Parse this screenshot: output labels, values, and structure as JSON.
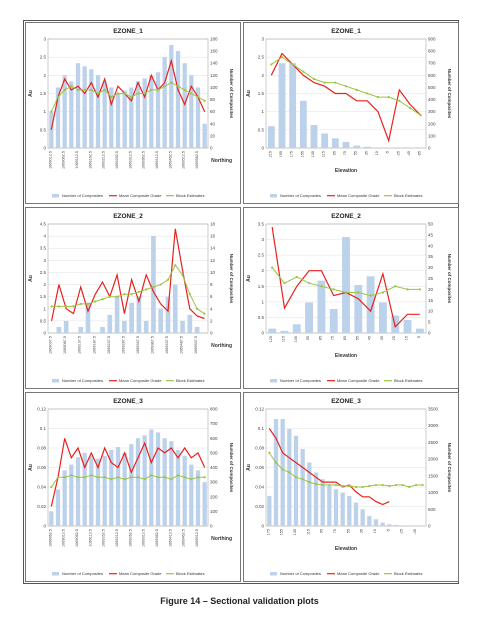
{
  "caption": "Figure 14 – Sectional validation plots",
  "colors": {
    "composites": "#bcd1ea",
    "mean_grade": "#e8211d",
    "block": "#9ac444"
  },
  "chart_data": [
    {
      "type": "bar+line",
      "title": "EZONE_1",
      "xlabel": "Northing",
      "ylabel": "Au",
      "ylabel_right": "Number of Composites",
      "ylim": [
        0,
        3
      ],
      "yticks": [
        "0",
        "0.5",
        "1",
        "1.5",
        "2",
        "2.5",
        "3"
      ],
      "ylim_right": [
        0,
        180
      ],
      "yticks_right": [
        "0",
        "20",
        "40",
        "60",
        "80",
        "100",
        "120",
        "140",
        "160",
        "180"
      ],
      "categories": [
        "1069012.5",
        "1069037.5",
        "1069062.5",
        "1069087.5",
        "1069112.5",
        "1069137.5",
        "1069162.5",
        "1069187.5",
        "1069212.5",
        "1069237.5",
        "1069262.5",
        "1069287.5",
        "1069312.5",
        "1069337.5",
        "1069362.5",
        "1069387.5",
        "1069412.5",
        "1069437.5",
        "1069462.5",
        "1069487.5",
        "1069512.5",
        "1069537.5",
        "1069562.5",
        "1069587.5"
      ],
      "xtick_step": 2,
      "series": [
        {
          "name": "Number of Composites",
          "kind": "bar",
          "axis": "right",
          "values": [
            60,
            100,
            120,
            110,
            140,
            135,
            130,
            120,
            110,
            100,
            90,
            95,
            100,
            110,
            115,
            120,
            125,
            150,
            170,
            160,
            140,
            120,
            100,
            40
          ]
        },
        {
          "name": "Mean Composite Grade",
          "kind": "line",
          "axis": "left",
          "values": [
            0.5,
            1.4,
            1.9,
            1.6,
            1.7,
            1.5,
            1.8,
            1.4,
            1.9,
            1.2,
            1.7,
            1.5,
            1.3,
            1.8,
            1.4,
            2.0,
            1.6,
            1.8,
            2.4,
            1.6,
            1.2,
            1.7,
            1.4,
            1.0
          ]
        },
        {
          "name": "Block Estimates",
          "kind": "line",
          "axis": "left",
          "values": [
            1.0,
            1.4,
            1.6,
            1.7,
            1.6,
            1.6,
            1.6,
            1.5,
            1.6,
            1.4,
            1.5,
            1.5,
            1.4,
            1.5,
            1.5,
            1.6,
            1.6,
            1.7,
            1.8,
            1.7,
            1.6,
            1.5,
            1.4,
            1.3
          ]
        }
      ]
    },
    {
      "type": "bar+line",
      "title": "EZONE_1",
      "xlabel": "Elevation",
      "ylabel": "Au",
      "ylabel_right": "Number of Composites",
      "ylim": [
        0,
        3
      ],
      "yticks": [
        "0",
        "0.5",
        "1",
        "1.5",
        "2",
        "2.5",
        "3"
      ],
      "ylim_right": [
        0,
        900
      ],
      "yticks_right": [
        "0",
        "100",
        "200",
        "300",
        "400",
        "500",
        "600",
        "700",
        "800",
        "900"
      ],
      "categories": [
        "215",
        "195",
        "175",
        "155",
        "135",
        "115",
        "95",
        "75",
        "55",
        "35",
        "15",
        "-5",
        "-25",
        "-45",
        "-65"
      ],
      "xtick_step": 1,
      "series": [
        {
          "name": "Number of Composites",
          "kind": "bar",
          "axis": "right",
          "values": [
            180,
            700,
            700,
            390,
            190,
            120,
            80,
            50,
            20,
            10,
            5,
            3,
            2,
            1,
            0
          ]
        },
        {
          "name": "Mean Composite Grade",
          "kind": "line",
          "axis": "left",
          "values": [
            2.0,
            2.6,
            2.3,
            2.0,
            1.8,
            1.7,
            1.5,
            1.5,
            1.3,
            1.3,
            1.0,
            0.2,
            1.6,
            1.2,
            0.9
          ]
        },
        {
          "name": "Block Estimates",
          "kind": "line",
          "axis": "left",
          "values": [
            2.3,
            2.5,
            2.3,
            2.1,
            1.9,
            1.8,
            1.8,
            1.7,
            1.6,
            1.5,
            1.4,
            1.4,
            1.3,
            1.1,
            0.9
          ]
        }
      ]
    },
    {
      "type": "bar+line",
      "title": "EZONE_2",
      "xlabel": "Northing",
      "ylabel": "Au",
      "ylabel_right": "Number of Composites",
      "ylim": [
        0,
        4.5
      ],
      "yticks": [
        "0",
        "0.5",
        "1",
        "1.5",
        "2",
        "2.5",
        "3",
        "3.5",
        "4",
        "4.5"
      ],
      "ylim_right": [
        0,
        18
      ],
      "yticks_right": [
        "0",
        "2",
        "4",
        "6",
        "8",
        "10",
        "12",
        "14",
        "16",
        "18"
      ],
      "categories": [
        "1069037.5",
        "1069062.5",
        "1069087.5",
        "1069112.5",
        "1069137.5",
        "1069162.5",
        "1069187.5",
        "1069212.5",
        "1069237.5",
        "1069262.5",
        "1069287.5",
        "1069312.5",
        "1069337.5",
        "1069362.5",
        "1069387.5",
        "1069412.5",
        "1069437.5",
        "1069462.5",
        "1069487.5",
        "1069512.5",
        "1069537.5",
        "1069562.5"
      ],
      "xtick_step": 2,
      "series": [
        {
          "name": "Number of Composites",
          "kind": "bar",
          "axis": "right",
          "values": [
            0,
            1,
            2,
            0,
            1,
            5,
            0,
            1,
            3,
            6,
            2,
            5,
            6,
            2,
            16,
            4,
            6,
            8,
            2,
            3,
            1,
            0
          ]
        },
        {
          "name": "Mean Composite Grade",
          "kind": "line",
          "axis": "left",
          "values": [
            0.5,
            2.0,
            1.0,
            0.8,
            1.9,
            0.9,
            1.6,
            2.1,
            1.5,
            2.4,
            0.8,
            2.2,
            1.3,
            2.4,
            1.7,
            1.2,
            0.9,
            4.3,
            2.6,
            1.0,
            0.7,
            0.6
          ]
        },
        {
          "name": "Block Estimates",
          "kind": "line",
          "axis": "left",
          "values": [
            1.1,
            1.1,
            1.1,
            1.1,
            1.2,
            1.2,
            1.3,
            1.4,
            1.5,
            1.5,
            1.6,
            1.6,
            1.7,
            1.8,
            1.9,
            2.0,
            2.2,
            2.8,
            2.4,
            1.6,
            1.0,
            0.8
          ]
        }
      ]
    },
    {
      "type": "bar+line",
      "title": "EZONE_2",
      "xlabel": "Elevation",
      "ylabel": "Au",
      "ylabel_right": "Number of Composites",
      "ylim": [
        0,
        3.5
      ],
      "yticks": [
        "0",
        "0.5",
        "1",
        "1.5",
        "2",
        "2.5",
        "3",
        "3.5"
      ],
      "ylim_right": [
        0,
        50
      ],
      "yticks_right": [
        "0",
        "5",
        "10",
        "15",
        "20",
        "25",
        "30",
        "35",
        "40",
        "45",
        "50"
      ],
      "categories": [
        "125",
        "115",
        "105",
        "95",
        "85",
        "75",
        "65",
        "55",
        "45",
        "35",
        "25",
        "15",
        "5"
      ],
      "xtick_step": 1,
      "series": [
        {
          "name": "Number of Composites",
          "kind": "bar",
          "axis": "right",
          "values": [
            2,
            1,
            4,
            14,
            24,
            11,
            44,
            22,
            26,
            14,
            8,
            6,
            2
          ]
        },
        {
          "name": "Mean Composite Grade",
          "kind": "line",
          "axis": "left",
          "values": [
            3.4,
            0.8,
            1.5,
            2.0,
            2.0,
            1.2,
            1.3,
            1.1,
            0.7,
            1.9,
            0.2,
            0.6,
            0.6
          ]
        },
        {
          "name": "Block Estimates",
          "kind": "line",
          "axis": "left",
          "values": [
            2.1,
            1.6,
            1.8,
            1.6,
            1.5,
            1.4,
            1.3,
            1.3,
            1.2,
            1.3,
            1.5,
            1.4,
            1.4
          ]
        }
      ]
    },
    {
      "type": "bar+line",
      "title": "EZONE_3",
      "xlabel": "Northing",
      "ylabel": "Au",
      "ylabel_right": "Number of Composites",
      "ylim": [
        0,
        0.12
      ],
      "yticks": [
        "0",
        "0.02",
        "0.04",
        "0.06",
        "0.08",
        "0.1",
        "0.12"
      ],
      "ylim_right": [
        0,
        800
      ],
      "yticks_right": [
        "0",
        "100",
        "200",
        "300",
        "400",
        "500",
        "600",
        "700",
        "800"
      ],
      "categories": [
        "1068962.5",
        "1068987.5",
        "1069012.5",
        "1069037.5",
        "1069062.5",
        "1069087.5",
        "1069112.5",
        "1069137.5",
        "1069162.5",
        "1069187.5",
        "1069212.5",
        "1069237.5",
        "1069262.5",
        "1069287.5",
        "1069312.5",
        "1069337.5",
        "1069362.5",
        "1069387.5",
        "1069412.5",
        "1069437.5",
        "1069462.5",
        "1069487.5",
        "1069512.5",
        "1069537.5"
      ],
      "xtick_step": 2,
      "series": [
        {
          "name": "Number of Composites",
          "kind": "bar",
          "axis": "right",
          "values": [
            100,
            250,
            380,
            420,
            470,
            500,
            480,
            460,
            480,
            520,
            540,
            500,
            560,
            600,
            620,
            660,
            640,
            600,
            580,
            520,
            480,
            420,
            380,
            300
          ]
        },
        {
          "name": "Mean Composite Grade",
          "kind": "line",
          "axis": "left",
          "values": [
            0.02,
            0.05,
            0.09,
            0.07,
            0.08,
            0.06,
            0.075,
            0.06,
            0.08,
            0.065,
            0.06,
            0.075,
            0.055,
            0.07,
            0.085,
            0.065,
            0.08,
            0.075,
            0.08,
            0.07,
            0.08,
            0.07,
            0.075,
            0.06
          ]
        },
        {
          "name": "Block Estimates",
          "kind": "line",
          "axis": "left",
          "values": [
            0.04,
            0.05,
            0.05,
            0.052,
            0.05,
            0.05,
            0.052,
            0.05,
            0.05,
            0.048,
            0.05,
            0.048,
            0.05,
            0.05,
            0.048,
            0.052,
            0.05,
            0.05,
            0.048,
            0.052,
            0.05,
            0.048,
            0.05,
            0.05
          ]
        }
      ]
    },
    {
      "type": "bar+line",
      "title": "EZONE_3",
      "xlabel": "Elevation",
      "ylabel": "Au",
      "ylabel_right": "Number of Composites",
      "ylim": [
        0,
        0.12
      ],
      "yticks": [
        "0",
        "0.02",
        "0.04",
        "0.06",
        "0.08",
        "0.1",
        "0.12"
      ],
      "ylim_right": [
        0,
        3500
      ],
      "yticks_right": [
        "0",
        "500",
        "1000",
        "1500",
        "2000",
        "2500",
        "3000",
        "3500"
      ],
      "categories": [
        "175",
        "165",
        "155",
        "145",
        "135",
        "125",
        "115",
        "105",
        "95",
        "85",
        "75",
        "65",
        "55",
        "45",
        "35",
        "25",
        "15",
        "5",
        "-5",
        "-15",
        "-25",
        "-35",
        "-45",
        "-55"
      ],
      "xtick_step": 2,
      "series": [
        {
          "name": "Number of Composites",
          "kind": "bar",
          "axis": "right",
          "values": [
            900,
            3200,
            3200,
            2900,
            2700,
            2300,
            1900,
            1600,
            1400,
            1200,
            1100,
            1000,
            900,
            700,
            500,
            300,
            200,
            100,
            50,
            30,
            20,
            10,
            5,
            0
          ]
        },
        {
          "name": "Mean Composite Grade",
          "kind": "line",
          "axis": "left",
          "values": [
            0.1,
            0.09,
            0.075,
            0.07,
            0.065,
            0.06,
            0.055,
            0.05,
            0.045,
            0.045,
            0.045,
            0.04,
            0.042,
            0.035,
            0.03,
            0.03,
            0.025,
            0.022,
            0.025,
            null,
            null,
            null,
            null,
            null
          ]
        },
        {
          "name": "Block Estimates",
          "kind": "line",
          "axis": "left",
          "values": [
            0.075,
            0.065,
            0.058,
            0.055,
            0.05,
            0.048,
            0.045,
            0.043,
            0.042,
            0.042,
            0.042,
            0.041,
            0.041,
            0.04,
            0.04,
            0.041,
            0.042,
            0.042,
            0.041,
            0.042,
            0.042,
            0.04,
            0.042,
            0.042
          ]
        }
      ]
    }
  ]
}
